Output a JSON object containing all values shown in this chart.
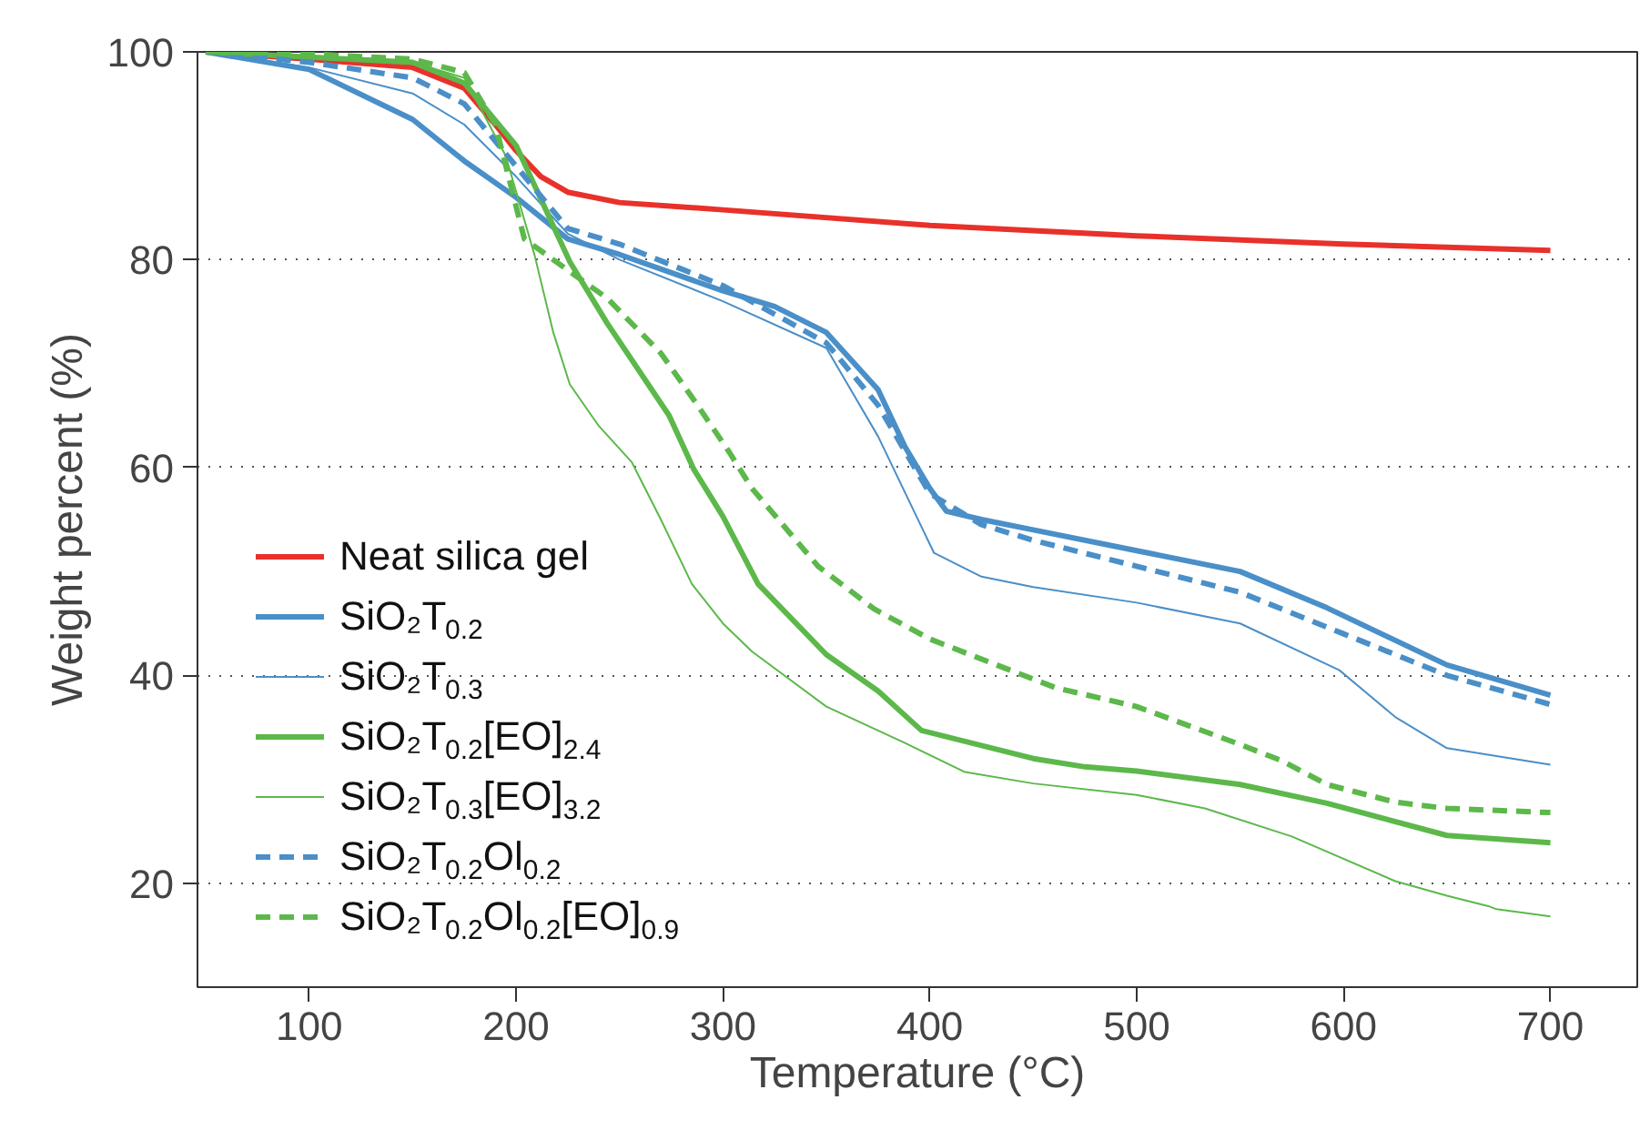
{
  "chart_data": {
    "type": "line",
    "xlabel": "Temperature (°C)",
    "ylabel": "Weight percent (%)",
    "xlim": [
      46,
      742
    ],
    "ylim": [
      10,
      100
    ],
    "xticks": [
      100,
      200,
      300,
      400,
      500,
      600,
      700
    ],
    "yticks": [
      20,
      40,
      60,
      80,
      100
    ],
    "grid": "y",
    "legend": "bottom left",
    "line_style": "solid",
    "series": [
      {
        "name": "Neat silica gel",
        "color": "#e8312a",
        "x": [
          50,
          100,
          150,
          175,
          190,
          200,
          212,
          225,
          250,
          300,
          400,
          500,
          600,
          700
        ],
        "values": [
          100,
          99.3,
          98.5,
          96.5,
          93,
          90.5,
          88,
          86.5,
          85.5,
          84.8,
          83.3,
          82.3,
          81.5,
          80.9
        ]
      },
      {
        "name": "SiO₂T$_{0.2}$",
        "color": "#4a8fc8",
        "x": [
          50,
          100,
          150,
          175,
          200,
          225,
          250,
          300,
          325,
          350,
          375,
          388,
          400,
          408,
          425,
          450,
          500,
          550,
          592,
          650,
          700
        ],
        "values": [
          100,
          98.3,
          93.5,
          89.5,
          86,
          82,
          80.5,
          77,
          75.5,
          73,
          67.5,
          62,
          58,
          55.8,
          55,
          54,
          52,
          50,
          46.5,
          41,
          38.1
        ]
      },
      {
        "name": "SiO₂T$_{0.3}$",
        "color": "#4a8fc8",
        "x": [
          50,
          100,
          150,
          175,
          200,
          225,
          250,
          300,
          350,
          375,
          402,
          425,
          450,
          500,
          550,
          598,
          625,
          650,
          700
        ],
        "values": [
          100,
          98.5,
          96,
          93,
          88,
          82.5,
          80,
          76,
          71.5,
          63,
          51.8,
          49.5,
          48.5,
          47,
          45,
          40.5,
          36,
          33,
          31.4
        ]
      },
      {
        "name": "SiO₂T$_{0.2}$[EO]$_{2.4}$",
        "color": "#5cb84a",
        "x": [
          50,
          100,
          150,
          175,
          200,
          226,
          244,
          274,
          286,
          300,
          317,
          350,
          375,
          396,
          450,
          475,
          500,
          550,
          592,
          650,
          700
        ],
        "values": [
          100,
          99.5,
          99,
          97,
          91,
          79.8,
          73.9,
          65,
          59.8,
          55.3,
          48.8,
          42,
          38.5,
          34.7,
          32,
          31.2,
          30.8,
          29.5,
          27.7,
          24.6,
          23.9
        ]
      },
      {
        "name": "SiO₂T$_{0.3}$[EO]$_{3.2}$",
        "color": "#5cb84a",
        "x": [
          50,
          100,
          150,
          175,
          195,
          209,
          218,
          226,
          240,
          256,
          270,
          285,
          300,
          314,
          350,
          388,
          417,
          450,
          500,
          533,
          575,
          625,
          650,
          670,
          674,
          700
        ],
        "values": [
          100,
          99.5,
          99,
          97.5,
          90,
          80.4,
          73,
          68,
          64,
          60.5,
          55,
          48.8,
          45,
          42.3,
          37,
          33.5,
          30.7,
          29.6,
          28.5,
          27.2,
          24.5,
          20.2,
          18.8,
          17.8,
          17.5,
          16.8
        ]
      },
      {
        "name": "SiO₂T$_{0.2}$Ol$_{0.2}$",
        "color": "#4a8fc8",
        "line_style": "dashed",
        "x": [
          50,
          100,
          150,
          175,
          200,
          225,
          250,
          300,
          350,
          375,
          400,
          425,
          450,
          500,
          550,
          600,
          650,
          700
        ],
        "values": [
          100,
          99,
          97.5,
          95,
          89,
          83,
          81.5,
          77.5,
          72,
          66,
          57.5,
          54.5,
          53,
          50.5,
          48,
          44,
          40,
          37.2
        ]
      },
      {
        "name": "SiO₂T$_{0.2}$Ol$_{0.2}$[EO]$_{0.9}$",
        "color": "#5cb84a",
        "line_style": "dashed",
        "x": [
          50,
          100,
          150,
          175,
          190,
          204,
          225,
          244,
          270,
          286,
          303,
          314,
          346,
          373,
          400,
          461,
          500,
          548,
          570,
          592,
          625,
          650,
          700
        ],
        "values": [
          100,
          99.8,
          99.3,
          98,
          93,
          82,
          79,
          76.3,
          71,
          66.5,
          61.5,
          58,
          50.5,
          46.4,
          43.5,
          38.8,
          37,
          33.5,
          31.8,
          29.5,
          27.8,
          27.2,
          26.8
        ]
      }
    ]
  }
}
